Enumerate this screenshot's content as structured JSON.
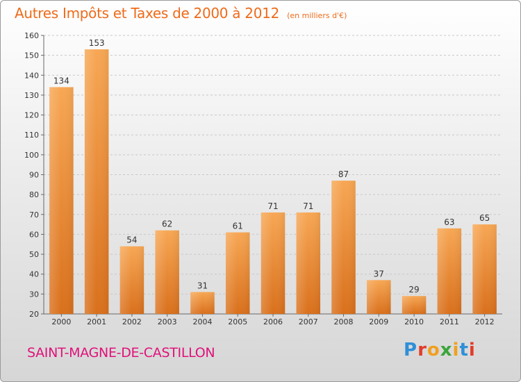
{
  "chart_data": {
    "type": "bar",
    "title": "Autres Impôts et Taxes de 2000 à 2012",
    "unit_label": "(en milliers d'€)",
    "categories": [
      "2000",
      "2001",
      "2002",
      "2003",
      "2004",
      "2005",
      "2006",
      "2007",
      "2008",
      "2009",
      "2010",
      "2011",
      "2012"
    ],
    "values": [
      134,
      153,
      54,
      62,
      31,
      61,
      71,
      71,
      87,
      37,
      29,
      63,
      65
    ],
    "ylim": [
      20,
      160
    ],
    "yticks": [
      20,
      30,
      40,
      50,
      60,
      70,
      80,
      90,
      100,
      110,
      120,
      130,
      140,
      150,
      160
    ],
    "grid": true,
    "bar_color": "#f0922e"
  },
  "footer": {
    "place_name": "SAINT-MAGNE-DE-CASTILLON",
    "logo_text": "Proxiti",
    "logo_colors": [
      "#2f8fd8",
      "#e23b2b",
      "#f0a020",
      "#3aa53a",
      "#f0a020",
      "#2f8fd8",
      "#e23b2b"
    ]
  }
}
